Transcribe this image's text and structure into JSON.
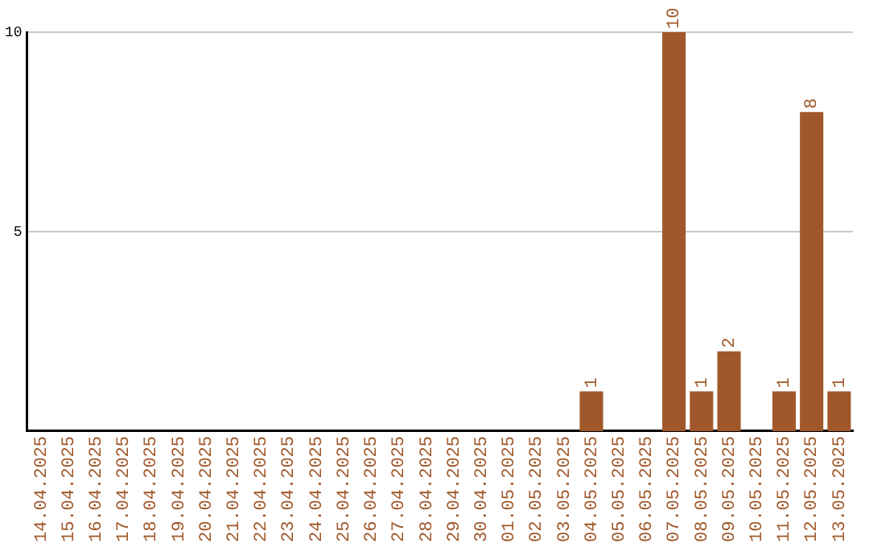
{
  "chart_data": {
    "type": "bar",
    "categories": [
      "14.04.2025",
      "15.04.2025",
      "16.04.2025",
      "17.04.2025",
      "18.04.2025",
      "19.04.2025",
      "20.04.2025",
      "21.04.2025",
      "22.04.2025",
      "23.04.2025",
      "24.04.2025",
      "25.04.2025",
      "26.04.2025",
      "27.04.2025",
      "28.04.2025",
      "29.04.2025",
      "30.04.2025",
      "01.05.2025",
      "02.05.2025",
      "03.05.2025",
      "04.05.2025",
      "05.05.2025",
      "06.05.2025",
      "07.05.2025",
      "08.05.2025",
      "09.05.2025",
      "10.05.2025",
      "11.05.2025",
      "12.05.2025",
      "13.05.2025"
    ],
    "values": [
      0,
      0,
      0,
      0,
      0,
      0,
      0,
      0,
      0,
      0,
      0,
      0,
      0,
      0,
      0,
      0,
      0,
      0,
      0,
      0,
      1,
      0,
      0,
      10,
      1,
      2,
      0,
      1,
      8,
      1
    ],
    "value_labels": [
      null,
      null,
      null,
      null,
      null,
      null,
      null,
      null,
      null,
      null,
      null,
      null,
      null,
      null,
      null,
      null,
      null,
      null,
      null,
      null,
      "1",
      null,
      null,
      "10",
      "1",
      "2",
      null,
      "1",
      "8",
      "1"
    ],
    "color": "#a0582a",
    "ylim": [
      0,
      10
    ],
    "yticks": [
      5,
      10
    ],
    "grid": "y",
    "legend": false
  }
}
